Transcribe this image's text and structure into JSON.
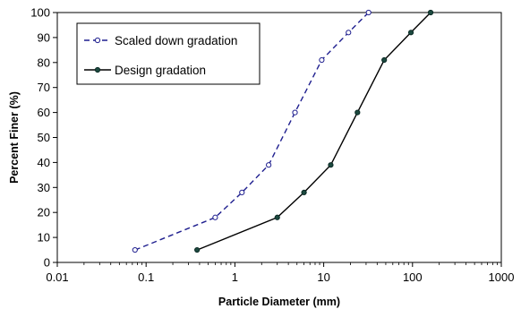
{
  "chart_data": {
    "type": "line",
    "xlabel": "Particle Diameter (mm)",
    "ylabel": "Percent Finer (%)",
    "x_scale": "log",
    "xlim": [
      0.01,
      1000
    ],
    "ylim": [
      0,
      100
    ],
    "x_ticks": [
      "0.01",
      "0.1",
      "1",
      "10",
      "100",
      "1000"
    ],
    "y_ticks": [
      "0",
      "10",
      "20",
      "30",
      "40",
      "50",
      "60",
      "70",
      "80",
      "90",
      "100"
    ],
    "grid": false,
    "legend_position": "top-left",
    "series": [
      {
        "name": "Scaled down gradation",
        "color": "#1f1f8f",
        "line_style": "dashed",
        "marker": "open-circle",
        "x": [
          0.075,
          0.6,
          1.2,
          2.4,
          4.75,
          9.5,
          19,
          32
        ],
        "y": [
          5,
          18,
          28,
          39,
          60,
          81,
          92,
          100
        ]
      },
      {
        "name": "Design gradation",
        "color": "#000000",
        "line_style": "solid",
        "marker": "filled-circle",
        "x": [
          0.375,
          3,
          6,
          12,
          24,
          48,
          96,
          160
        ],
        "y": [
          5,
          18,
          28,
          39,
          60,
          81,
          92,
          100
        ]
      }
    ]
  }
}
